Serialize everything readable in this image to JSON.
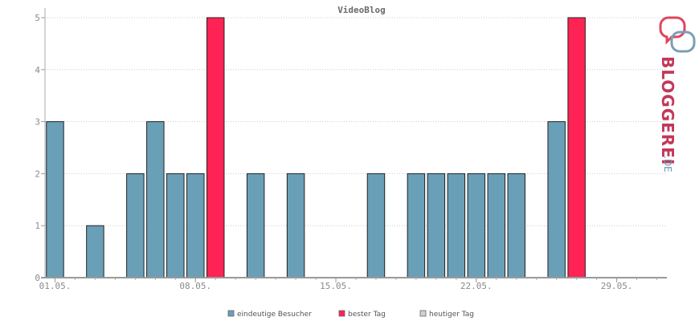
{
  "chart_data": {
    "type": "bar",
    "title": "VideoBlog",
    "ylim": [
      0,
      5
    ],
    "y_ticks": [
      "0",
      "1",
      "2",
      "3",
      "4",
      "5"
    ],
    "x_tick_labels": [
      "01.05.",
      "08.05.",
      "15.05.",
      "22.05.",
      "29.05."
    ],
    "x_tick_days": [
      1,
      8,
      15,
      22,
      29
    ],
    "x_day_range": [
      1,
      31
    ],
    "grid": true,
    "legend_position": "bottom",
    "series": [
      {
        "name": "eindeutige Besucher",
        "color": "#6a9fb8",
        "x": [
          1,
          3,
          5,
          6,
          7,
          8,
          11,
          13,
          17,
          19,
          20,
          21,
          22,
          23,
          24,
          26
        ],
        "values": [
          3,
          1,
          2,
          3,
          2,
          2,
          2,
          2,
          2,
          2,
          2,
          2,
          2,
          2,
          2,
          3
        ]
      },
      {
        "name": "bester Tag",
        "color": "#ff2255",
        "x": [
          9,
          27
        ],
        "values": [
          5,
          5
        ]
      },
      {
        "name": "heutiger Tag",
        "color": "#d0d0d0",
        "x": [],
        "values": []
      }
    ]
  },
  "logo": {
    "word": "BLOGGEREI",
    "tld": ".DE"
  }
}
